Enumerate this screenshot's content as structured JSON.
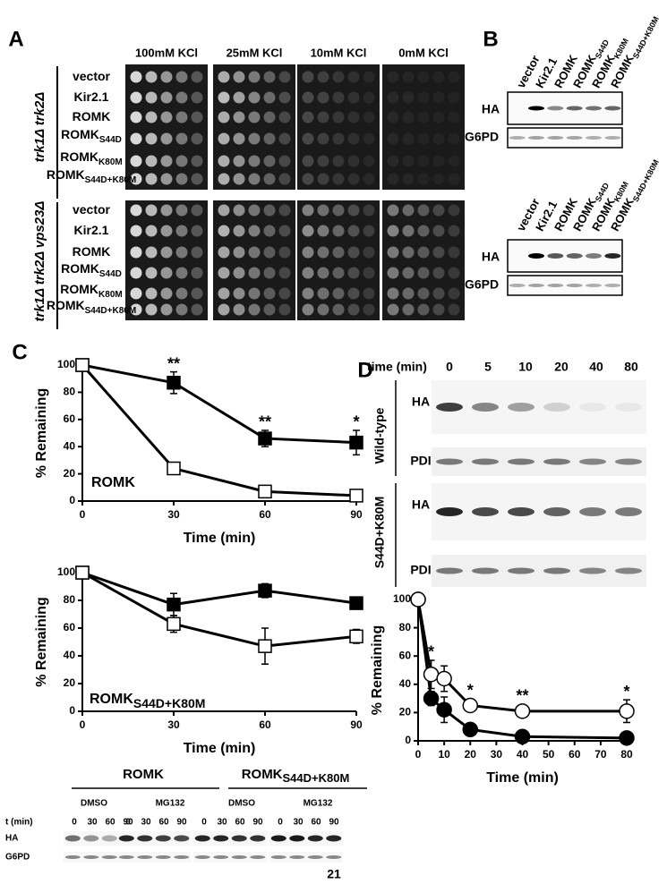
{
  "panel_labels": [
    "A",
    "B",
    "C",
    "D"
  ],
  "panel_a": {
    "conditions": [
      "100mM KCl",
      "25mM KCl",
      "10mM KCl",
      "0mM KCl"
    ],
    "groups": [
      {
        "strain": "trk1Δ trk2Δ",
        "rows": [
          {
            "main": "vector"
          },
          {
            "main": "Kir2.1"
          },
          {
            "main": "ROMK"
          },
          {
            "main": "ROMK",
            "sub": "S44D"
          },
          {
            "main": "ROMK",
            "sub": "K80M"
          },
          {
            "main": "ROMK",
            "sub": "S44D+K80M"
          }
        ]
      },
      {
        "strain": "trk1Δ trk2Δ vps23Δ",
        "rows": [
          {
            "main": "vector"
          },
          {
            "main": "Kir2.1"
          },
          {
            "main": "ROMK"
          },
          {
            "main": "ROMK",
            "sub": "S44D"
          },
          {
            "main": "ROMK",
            "sub": "K80M"
          },
          {
            "main": "ROMK",
            "sub": "S44D+K80M"
          }
        ]
      }
    ]
  },
  "panel_b": {
    "blots": [
      {
        "lanes": [
          {
            "main": "vector"
          },
          {
            "main": "Kir2.1"
          },
          {
            "main": "ROMK"
          },
          {
            "main": "ROMK",
            "sub": "S44D"
          },
          {
            "main": "ROMK",
            "sub": "K80M"
          },
          {
            "main": "ROMK",
            "sub": "S44D+K80M"
          }
        ],
        "rows": [
          "HA",
          "G6PD"
        ]
      },
      {
        "lanes": [
          {
            "main": "vector"
          },
          {
            "main": "Kir2.1"
          },
          {
            "main": "ROMK"
          },
          {
            "main": "ROMK",
            "sub": "S44D"
          },
          {
            "main": "ROMK",
            "sub": "K80M"
          },
          {
            "main": "ROMK",
            "sub": "S44D+K80M"
          }
        ],
        "rows": [
          "HA",
          "G6PD"
        ]
      }
    ]
  },
  "panel_c_blot": {
    "groups": [
      {
        "main": "ROMK"
      },
      {
        "main": "ROMK",
        "sub": "S44D+K80M"
      }
    ],
    "treatments": [
      "DMSO",
      "MG132",
      "DMSO",
      "MG132"
    ],
    "time_label": "t (min)",
    "times": [
      "0",
      "30",
      "60",
      "90"
    ],
    "rows": [
      "HA",
      "G6PD"
    ]
  },
  "panel_d_blot": {
    "time_label": "time (min)",
    "times": [
      "0",
      "5",
      "10",
      "20",
      "40",
      "80"
    ],
    "samples": [
      {
        "name": "Wild-type",
        "rows": [
          "HA",
          "PDI"
        ]
      },
      {
        "name": "S44D+K80M",
        "rows": [
          "HA",
          "PDI"
        ]
      }
    ]
  },
  "chart_data": [
    {
      "type": "line",
      "ylabel": "% Remaining",
      "xlabel": "Time (min)",
      "annotation": {
        "main": "ROMK"
      },
      "marker": "square",
      "x": [
        0,
        30,
        60,
        90
      ],
      "xlim": [
        0,
        90
      ],
      "xticks": [
        0,
        30,
        60,
        90
      ],
      "ylim": [
        0,
        100
      ],
      "yticks": [
        0,
        20,
        40,
        60,
        80,
        100
      ],
      "series": [
        {
          "color": "#000000",
          "fill": "#000000",
          "values": [
            100,
            87,
            46,
            43
          ],
          "errors": [
            null,
            8,
            6,
            9
          ],
          "significance": [
            null,
            "**",
            "**",
            "*"
          ]
        },
        {
          "color": "#000000",
          "fill": "#ffffff",
          "values": [
            100,
            24,
            7,
            4
          ],
          "errors": [
            null,
            2,
            2,
            2
          ]
        }
      ]
    },
    {
      "type": "line",
      "ylabel": "% Remaining",
      "xlabel": "Time (min)",
      "annotation": {
        "main": "ROMK",
        "sub": "S44D+K80M"
      },
      "marker": "square",
      "x": [
        0,
        30,
        60,
        90
      ],
      "xlim": [
        0,
        90
      ],
      "xticks": [
        0,
        30,
        60,
        90
      ],
      "ylim": [
        0,
        100
      ],
      "yticks": [
        0,
        20,
        40,
        60,
        80,
        100
      ],
      "series": [
        {
          "color": "#000000",
          "fill": "#000000",
          "values": [
            100,
            77,
            87,
            78
          ],
          "errors": [
            null,
            8,
            5,
            3
          ]
        },
        {
          "color": "#000000",
          "fill": "#ffffff",
          "values": [
            100,
            63,
            47,
            54
          ],
          "errors": [
            null,
            6,
            13,
            5
          ]
        }
      ]
    },
    {
      "type": "line",
      "ylabel": "% Remaining",
      "xlabel": "Time (min)",
      "marker": "circle",
      "x": [
        0,
        5,
        10,
        20,
        40,
        80
      ],
      "xlim": [
        0,
        80
      ],
      "xticks": [
        0,
        10,
        20,
        30,
        40,
        50,
        60,
        70,
        80
      ],
      "ylim": [
        0,
        100
      ],
      "yticks": [
        0,
        20,
        40,
        60,
        80,
        100
      ],
      "series": [
        {
          "color": "#000000",
          "fill": "#000000",
          "values": [
            100,
            30,
            22,
            8,
            3,
            2
          ],
          "errors": [
            null,
            5,
            9,
            2,
            1,
            1
          ]
        },
        {
          "color": "#000000",
          "fill": "#ffffff",
          "values": [
            100,
            47,
            44,
            25,
            21,
            21
          ],
          "errors": [
            null,
            10,
            9,
            3,
            2,
            8
          ],
          "significance": [
            null,
            "*",
            null,
            "*",
            "**",
            "*"
          ]
        }
      ]
    }
  ],
  "page_number": "21"
}
